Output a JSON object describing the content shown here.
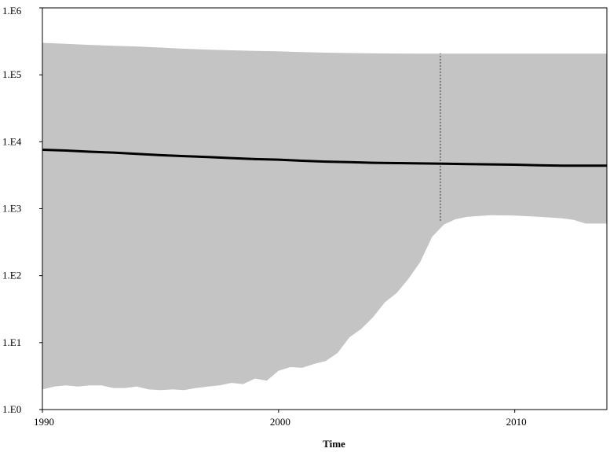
{
  "chart_data": {
    "type": "area",
    "title": "",
    "xlabel": "Time",
    "ylabel": "",
    "xlim": [
      1990,
      2013.9
    ],
    "ylim": [
      1,
      1000000
    ],
    "yscale": "log",
    "grid": false,
    "legend": "none",
    "x_ticks": [
      {
        "value": 1990,
        "label": "1990"
      },
      {
        "value": 2000,
        "label": "2000"
      },
      {
        "value": 2010,
        "label": "2010"
      }
    ],
    "y_ticks": [
      {
        "value": 1,
        "label": "1.E0"
      },
      {
        "value": 10,
        "label": "1.E1"
      },
      {
        "value": 100,
        "label": "1.E2"
      },
      {
        "value": 1000,
        "label": "1.E3"
      },
      {
        "value": 10000,
        "label": "1.E4"
      },
      {
        "value": 100000,
        "label": "1.E5"
      },
      {
        "value": 1000000,
        "label": "1.E6"
      }
    ],
    "median": {
      "x": [
        1990,
        1991,
        1992,
        1993,
        1994,
        1995,
        1996,
        1997,
        1998,
        1999,
        2000,
        2001,
        2002,
        2003,
        2004,
        2005,
        2006,
        2007,
        2008,
        2009,
        2010,
        2011,
        2012,
        2013,
        2013.9
      ],
      "y": [
        7600,
        7400,
        7100,
        6900,
        6600,
        6300,
        6100,
        5900,
        5700,
        5500,
        5400,
        5200,
        5050,
        4950,
        4850,
        4800,
        4750,
        4700,
        4650,
        4600,
        4550,
        4450,
        4400,
        4400,
        4400
      ]
    },
    "upper": {
      "x": [
        1990,
        1991,
        1992,
        1993,
        1994,
        1995,
        1996,
        1997,
        1998,
        1999,
        2000,
        2001,
        2002,
        2003,
        2004,
        2005,
        2006,
        2007,
        2008,
        2009,
        2010,
        2011,
        2012,
        2013,
        2013.9
      ],
      "y": [
        300000,
        290000,
        280000,
        272000,
        265000,
        255000,
        245000,
        238000,
        232000,
        228000,
        224000,
        218000,
        214000,
        211000,
        209000,
        208000,
        207000,
        207000,
        207000,
        207000,
        207000,
        207000,
        207000,
        207000,
        207000
      ]
    },
    "lower": {
      "x": [
        1990,
        1990.5,
        1991,
        1991.5,
        1992,
        1992.5,
        1993,
        1993.5,
        1994,
        1994.5,
        1995,
        1995.5,
        1996,
        1996.5,
        1997,
        1997.5,
        1998,
        1998.5,
        1999,
        1999.5,
        2000,
        2000.5,
        2001,
        2001.5,
        2002,
        2002.5,
        2003,
        2003.5,
        2004,
        2004.5,
        2005,
        2005.5,
        2006,
        2006.5,
        2007,
        2007.5,
        2008,
        2009,
        2010,
        2011,
        2012,
        2012.5,
        2013,
        2013.9
      ],
      "y": [
        2.0,
        2.2,
        2.3,
        2.2,
        2.3,
        2.3,
        2.1,
        2.1,
        2.2,
        2.0,
        1.95,
        2.0,
        1.95,
        2.1,
        2.2,
        2.3,
        2.5,
        2.4,
        2.9,
        2.7,
        3.8,
        4.3,
        4.2,
        4.8,
        5.3,
        7.0,
        12,
        16,
        24,
        40,
        55,
        90,
        160,
        380,
        580,
        700,
        760,
        800,
        790,
        760,
        720,
        680,
        600,
        600
      ]
    },
    "marker_line": {
      "x": 2006.85,
      "y_range": [
        660,
        210000
      ],
      "style": "dotted"
    },
    "colors": {
      "band": "#c4c4c4",
      "median": "#000000",
      "axis": "#000000"
    }
  }
}
